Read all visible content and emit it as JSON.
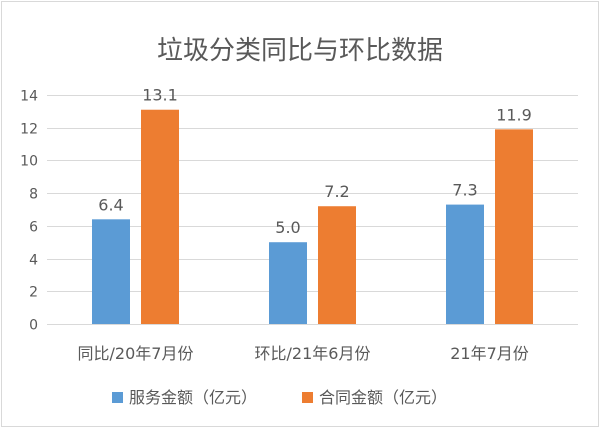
{
  "chart_data": {
    "type": "bar",
    "title": "垃圾分类同比与环比数据",
    "categories": [
      "同比/20年7月份",
      "环比/21年6月份",
      "21年7月份"
    ],
    "series": [
      {
        "name": "服务金额（亿元）",
        "color": "#5b9bd5",
        "values": [
          6.4,
          5.0,
          7.3
        ],
        "labels": [
          "6.4",
          "5.0",
          "7.3"
        ]
      },
      {
        "name": "合同金额（亿元）",
        "color": "#ed7d31",
        "values": [
          13.1,
          7.2,
          11.9
        ],
        "labels": [
          "13.1",
          "7.2",
          "11.9"
        ]
      }
    ],
    "ylim": [
      0,
      14
    ],
    "yticks": [
      0,
      2,
      4,
      6,
      8,
      10,
      12,
      14
    ],
    "xlabel": "",
    "ylabel": "",
    "grid": true,
    "legend_position": "bottom"
  }
}
